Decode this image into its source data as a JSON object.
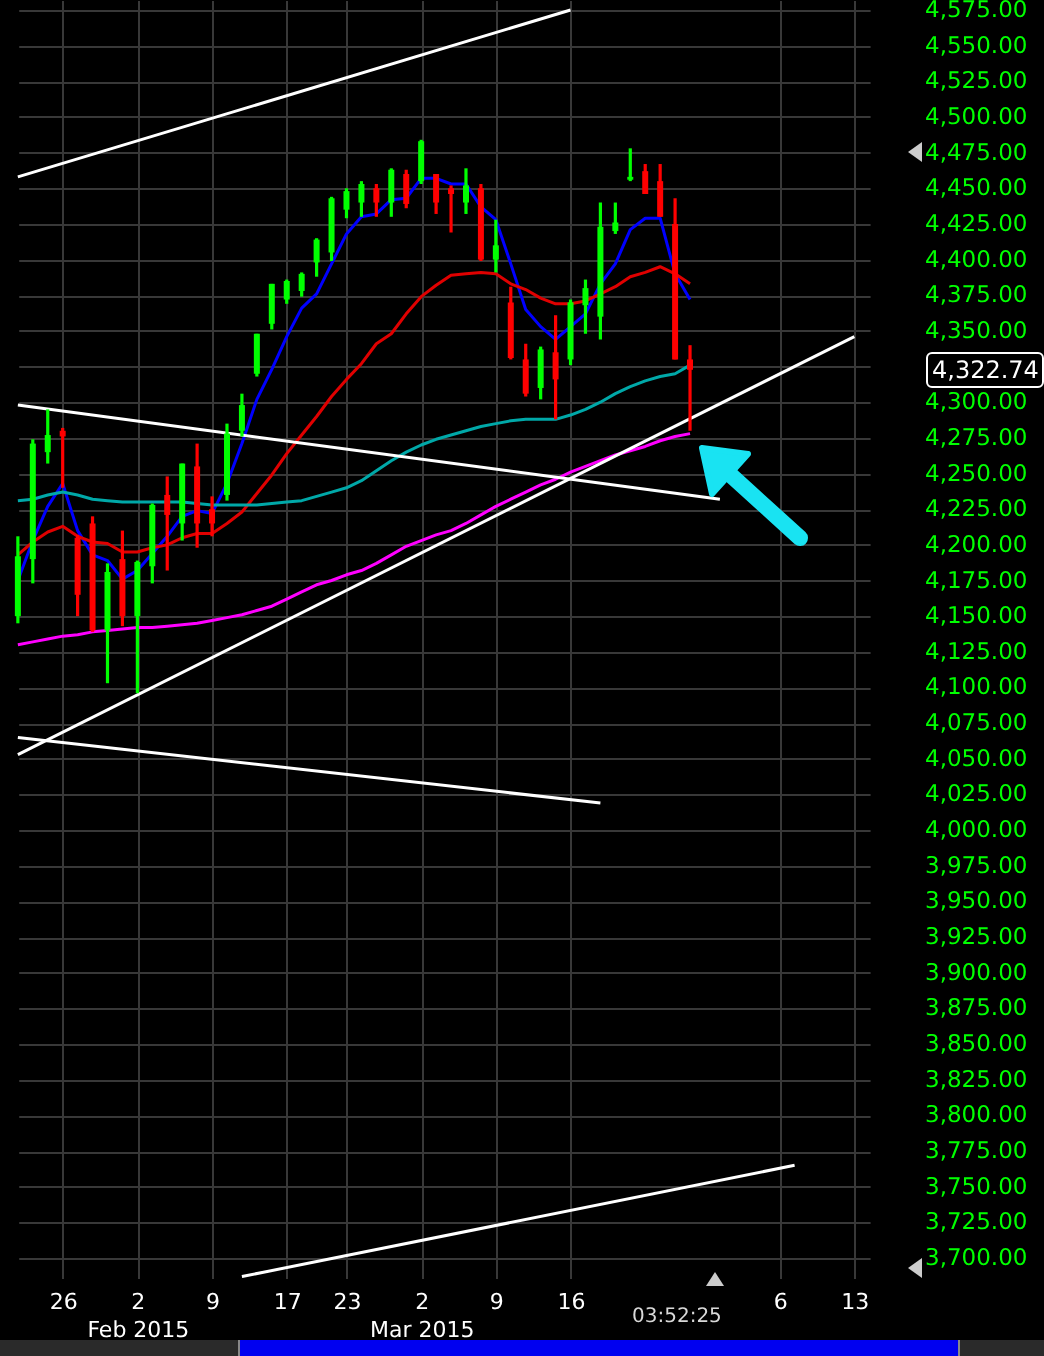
{
  "chart_data": {
    "type": "candlestick",
    "categories": [
      null,
      null,
      null,
      "26",
      null,
      null,
      null,
      null,
      "2\nFeb 2015",
      null,
      null,
      null,
      null,
      "9",
      null,
      null,
      null,
      null,
      "17",
      null,
      null,
      null,
      "23",
      null,
      null,
      null,
      null,
      "2\nMar 2015",
      null,
      null,
      null,
      null,
      "9",
      null,
      null,
      null,
      null,
      "16",
      null,
      null,
      null,
      null,
      null,
      null,
      null,
      null,
      null,
      null,
      null,
      null,
      null,
      "6",
      null,
      null,
      null,
      null,
      "13"
    ],
    "ohlc": [
      [
        4150,
        4206,
        4145,
        4192
      ],
      [
        4190,
        4274,
        4173,
        4271
      ],
      [
        4265,
        4295,
        4257,
        4277
      ],
      [
        4280,
        4282,
        4240,
        4276
      ],
      [
        4205,
        4207,
        4150,
        4165
      ],
      [
        4215,
        4220,
        4139,
        4140
      ],
      [
        4140,
        4187,
        4103,
        4181
      ],
      [
        4190,
        4210,
        4143,
        4150
      ],
      [
        4150,
        4189,
        4096,
        4188
      ],
      [
        4185,
        4229,
        4173,
        4228
      ],
      [
        4235,
        4248,
        4182,
        4221
      ],
      [
        4215,
        4257,
        4203,
        4257
      ],
      [
        4255,
        4271,
        4198,
        4215
      ],
      [
        4225,
        4234,
        4206,
        4215
      ],
      [
        4235,
        4285,
        4231,
        4278
      ],
      [
        4280,
        4306,
        4276,
        4298
      ],
      [
        4320,
        4348,
        4318,
        4348
      ],
      [
        4355,
        4383,
        4351,
        4383
      ],
      [
        4372,
        4386,
        4369,
        4385
      ],
      [
        4378,
        4391,
        4374,
        4390
      ],
      [
        4398,
        4415,
        4388,
        4414
      ],
      [
        4405,
        4444,
        4399,
        4443
      ],
      [
        4435,
        4450,
        4429,
        4448
      ],
      [
        4440,
        4455,
        4430,
        4453
      ],
      [
        4450,
        4453,
        4430,
        4440
      ],
      [
        4440,
        4464,
        4430,
        4463
      ],
      [
        4460,
        4463,
        4436,
        4439
      ],
      [
        4455,
        4484,
        4453,
        4483
      ],
      [
        4460,
        4460,
        4432,
        4440
      ],
      [
        4450,
        4452,
        4419,
        4446
      ],
      [
        4440,
        4464,
        4432,
        4452
      ],
      [
        4450,
        4453,
        4399,
        4400
      ],
      [
        4400,
        4428,
        4391,
        4410
      ],
      [
        4370,
        4381,
        4330,
        4331
      ],
      [
        4330,
        4341,
        4304,
        4306
      ],
      [
        4310,
        4339,
        4302,
        4337
      ],
      [
        4335,
        4361,
        4288,
        4316
      ],
      [
        4330,
        4372,
        4326,
        4370
      ],
      [
        4368,
        4386,
        4348,
        4380
      ],
      [
        4360,
        4440,
        4344,
        4423
      ],
      [
        4420,
        4440,
        4418,
        4426
      ],
      [
        4456,
        4478,
        4455,
        4458
      ],
      [
        4462,
        4467,
        4446,
        4446
      ],
      [
        4455,
        4467,
        4430,
        4430
      ],
      [
        4425,
        4443,
        4330,
        4330
      ],
      [
        4330,
        4340,
        4280,
        4322.74
      ],
      null,
      null,
      null,
      null,
      null,
      null,
      null,
      null,
      null,
      null,
      null
    ],
    "colors": [
      "#00ff00",
      "#00ff00",
      "#00ff00",
      "#ff0000",
      "#ff0000",
      "#ff0000",
      "#00ff00",
      "#ff0000",
      "#00ff00",
      "#00ff00",
      "#ff0000",
      "#00ff00",
      "#ff0000",
      "#ff0000",
      "#00ff00",
      "#00ff00",
      "#00ff00",
      "#00ff00",
      "#00ff00",
      "#00ff00",
      "#00ff00",
      "#00ff00",
      "#00ff00",
      "#00ff00",
      "#ff0000",
      "#00ff00",
      "#ff0000",
      "#00ff00",
      "#ff0000",
      "#ff0000",
      "#00ff00",
      "#ff0000",
      "#00ff00",
      "#ff0000",
      "#ff0000",
      "#00ff00",
      "#ff0000",
      "#00ff00",
      "#00ff00",
      "#00ff00",
      "#00ff00",
      "#00ff00",
      "#ff0000",
      "#ff0000",
      "#ff0000",
      "#ff0000",
      null,
      null,
      null,
      null,
      null,
      null,
      null,
      null,
      null,
      null,
      null
    ],
    "series": [
      {
        "type": "line",
        "color": "#0000ff",
        "values": [
          4175,
          4203,
          4227,
          4243,
          4210,
          4193,
          4189,
          4176,
          4182,
          4194,
          4206,
          4220,
          4224,
          4222,
          4243,
          4271,
          4302,
          4323,
          4346,
          4366,
          4376,
          4397,
          4418,
          4430,
          4432,
          4442,
          4443,
          4457,
          4457,
          4453,
          4453,
          4437,
          4428,
          4397,
          4365,
          4353,
          4344,
          4353,
          4362,
          4383,
          4397,
          4421,
          4429,
          4429,
          4390,
          4372,
          null,
          null,
          null,
          null,
          null,
          null,
          null,
          null,
          null,
          null,
          null
        ]
      },
      {
        "type": "line",
        "color": "#e00000",
        "values": [
          4193,
          4202,
          4209,
          4213,
          4206,
          4202,
          4201,
          4195,
          4195,
          4198,
          4200,
          4205,
          4208,
          4208,
          4215,
          4223,
          4236,
          4249,
          4264,
          4277,
          4290,
          4304,
          4316,
          4327,
          4341,
          4348,
          4362,
          4374,
          4382,
          4389,
          4390,
          4391,
          4390,
          4383,
          4379,
          4373,
          4369,
          4369,
          4371,
          4376,
          4381,
          4388,
          4391,
          4395,
          4390,
          4383,
          null,
          null,
          null,
          null,
          null,
          null,
          null,
          null,
          null,
          null,
          null
        ]
      },
      {
        "type": "line",
        "color": "#00a8a8",
        "values": [
          4231,
          4232,
          4235,
          4237,
          4235,
          4232,
          4231,
          4230,
          4230,
          4230,
          4230,
          4230,
          4229,
          4228,
          4228,
          4228,
          4228,
          4229,
          4230,
          4231,
          4234,
          4237,
          4240,
          4245,
          4252,
          4259,
          4265,
          4270,
          4274,
          4277,
          4280,
          4283,
          4285,
          4287,
          4288,
          4288,
          4288,
          4291,
          4295,
          4300,
          4306,
          4311,
          4315,
          4318,
          4320,
          4326,
          null,
          null,
          null,
          null,
          null,
          null,
          null,
          null,
          null,
          null,
          null
        ]
      },
      {
        "type": "line",
        "color": "#ff00ff",
        "values": [
          4130,
          4132,
          4134,
          4136,
          4137,
          4139,
          4140,
          4141,
          4142,
          4142,
          4143,
          4144,
          4145,
          4147,
          4149,
          4151,
          4154,
          4157,
          4162,
          4167,
          4172,
          4175,
          4179,
          4182,
          4187,
          4193,
          4199,
          4203,
          4207,
          4210,
          4215,
          4221,
          4227,
          4232,
          4237,
          4242,
          4246,
          4251,
          4255,
          4259,
          4263,
          4266,
          4269,
          4273,
          4276,
          4278,
          null,
          null,
          null,
          null,
          null,
          null,
          null,
          null,
          null,
          null,
          null
        ]
      },
      {
        "type": "line",
        "color": "#ffffff",
        "values": [
          4458,
          null,
          null,
          null,
          null,
          null,
          null,
          null,
          null,
          null,
          null,
          null,
          null,
          null,
          null,
          null,
          null,
          null,
          null,
          null,
          null,
          null,
          null,
          null,
          null,
          null,
          null,
          null,
          null,
          null,
          null,
          null,
          null,
          null,
          null,
          null,
          null,
          4575,
          null,
          null,
          null,
          null,
          null,
          null,
          null,
          null,
          null,
          null,
          null,
          null,
          null,
          null,
          null,
          null,
          null,
          null,
          null
        ]
      },
      {
        "type": "line",
        "color": "#ffffff",
        "values": [
          4298,
          null,
          null,
          null,
          null,
          null,
          null,
          null,
          null,
          null,
          null,
          null,
          null,
          null,
          null,
          null,
          null,
          null,
          null,
          null,
          null,
          null,
          null,
          null,
          null,
          null,
          null,
          null,
          null,
          null,
          null,
          null,
          null,
          null,
          null,
          null,
          null,
          null,
          null,
          null,
          null,
          null,
          null,
          null,
          null,
          null,
          null,
          4232,
          null,
          null,
          null,
          null,
          null,
          null,
          null,
          null,
          null
        ]
      },
      {
        "type": "line",
        "color": "#ffffff",
        "values": [
          4065,
          null,
          null,
          null,
          null,
          null,
          null,
          null,
          null,
          null,
          null,
          null,
          null,
          null,
          null,
          null,
          null,
          null,
          null,
          null,
          null,
          null,
          null,
          null,
          null,
          null,
          null,
          null,
          null,
          null,
          null,
          null,
          null,
          null,
          null,
          null,
          null,
          null,
          null,
          4019,
          null,
          null,
          null,
          null,
          null,
          null,
          null,
          null,
          null,
          null,
          null,
          null,
          null,
          null,
          null,
          null,
          null
        ]
      },
      {
        "type": "line",
        "color": "#ffffff",
        "values": [
          4053,
          null,
          null,
          null,
          null,
          null,
          null,
          null,
          null,
          null,
          null,
          null,
          null,
          null,
          null,
          null,
          null,
          null,
          null,
          null,
          null,
          null,
          null,
          null,
          null,
          null,
          null,
          null,
          null,
          null,
          null,
          null,
          null,
          null,
          null,
          null,
          null,
          null,
          null,
          null,
          null,
          null,
          null,
          null,
          null,
          null,
          null,
          null,
          null,
          null,
          null,
          null,
          null,
          null,
          null,
          null,
          4346
        ]
      },
      {
        "type": "line",
        "color": "#ffffff",
        "values": [
          null,
          null,
          null,
          null,
          null,
          null,
          null,
          null,
          null,
          null,
          null,
          null,
          null,
          null,
          null,
          3687,
          null,
          null,
          null,
          null,
          null,
          null,
          null,
          null,
          null,
          null,
          null,
          null,
          null,
          null,
          null,
          null,
          null,
          null,
          null,
          null,
          null,
          null,
          null,
          null,
          null,
          null,
          null,
          null,
          null,
          null,
          null,
          null,
          null,
          null,
          null,
          null,
          3765,
          null,
          null,
          null,
          null
        ]
      }
    ],
    "ylim": [
      3686,
      4582
    ],
    "yticks": [
      {
        "value": 3700,
        "label": "3,700.00"
      },
      {
        "value": 3725,
        "label": "3,725.00"
      },
      {
        "value": 3750,
        "label": "3,750.00"
      },
      {
        "value": 3775,
        "label": "3,775.00"
      },
      {
        "value": 3800,
        "label": "3,800.00"
      },
      {
        "value": 3825,
        "label": "3,825.00"
      },
      {
        "value": 3850,
        "label": "3,850.00"
      },
      {
        "value": 3875,
        "label": "3,875.00"
      },
      {
        "value": 3900,
        "label": "3,900.00"
      },
      {
        "value": 3925,
        "label": "3,925.00"
      },
      {
        "value": 3950,
        "label": "3,950.00"
      },
      {
        "value": 3975,
        "label": "3,975.00"
      },
      {
        "value": 4000,
        "label": "4,000.00"
      },
      {
        "value": 4025,
        "label": "4,025.00"
      },
      {
        "value": 4050,
        "label": "4,050.00"
      },
      {
        "value": 4075,
        "label": "4,075.00"
      },
      {
        "value": 4100,
        "label": "4,100.00"
      },
      {
        "value": 4125,
        "label": "4,125.00"
      },
      {
        "value": 4150,
        "label": "4,150.00"
      },
      {
        "value": 4175,
        "label": "4,175.00"
      },
      {
        "value": 4200,
        "label": "4,200.00"
      },
      {
        "value": 4225,
        "label": "4,225.00"
      },
      {
        "value": 4250,
        "label": "4,250.00"
      },
      {
        "value": 4275,
        "label": "4,275.00"
      },
      {
        "value": 4300,
        "label": "4,300.00"
      },
      {
        "value": 4325,
        "label": null
      },
      {
        "value": 4350,
        "label": "4,350.00"
      },
      {
        "value": 4375,
        "label": "4,375.00"
      },
      {
        "value": 4400,
        "label": "4,400.00"
      },
      {
        "value": 4425,
        "label": "4,425.00"
      },
      {
        "value": 4450,
        "label": "4,450.00"
      },
      {
        "value": 4475,
        "label": "4,475.00"
      },
      {
        "value": 4500,
        "label": "4,500.00"
      },
      {
        "value": 4525,
        "label": "4,525.00"
      },
      {
        "value": 4550,
        "label": "4,550.00"
      },
      {
        "value": 4575,
        "label": "4,575.00"
      }
    ],
    "grid": true,
    "annotations": [
      "03:52:25",
      "4,322.74"
    ]
  }
}
